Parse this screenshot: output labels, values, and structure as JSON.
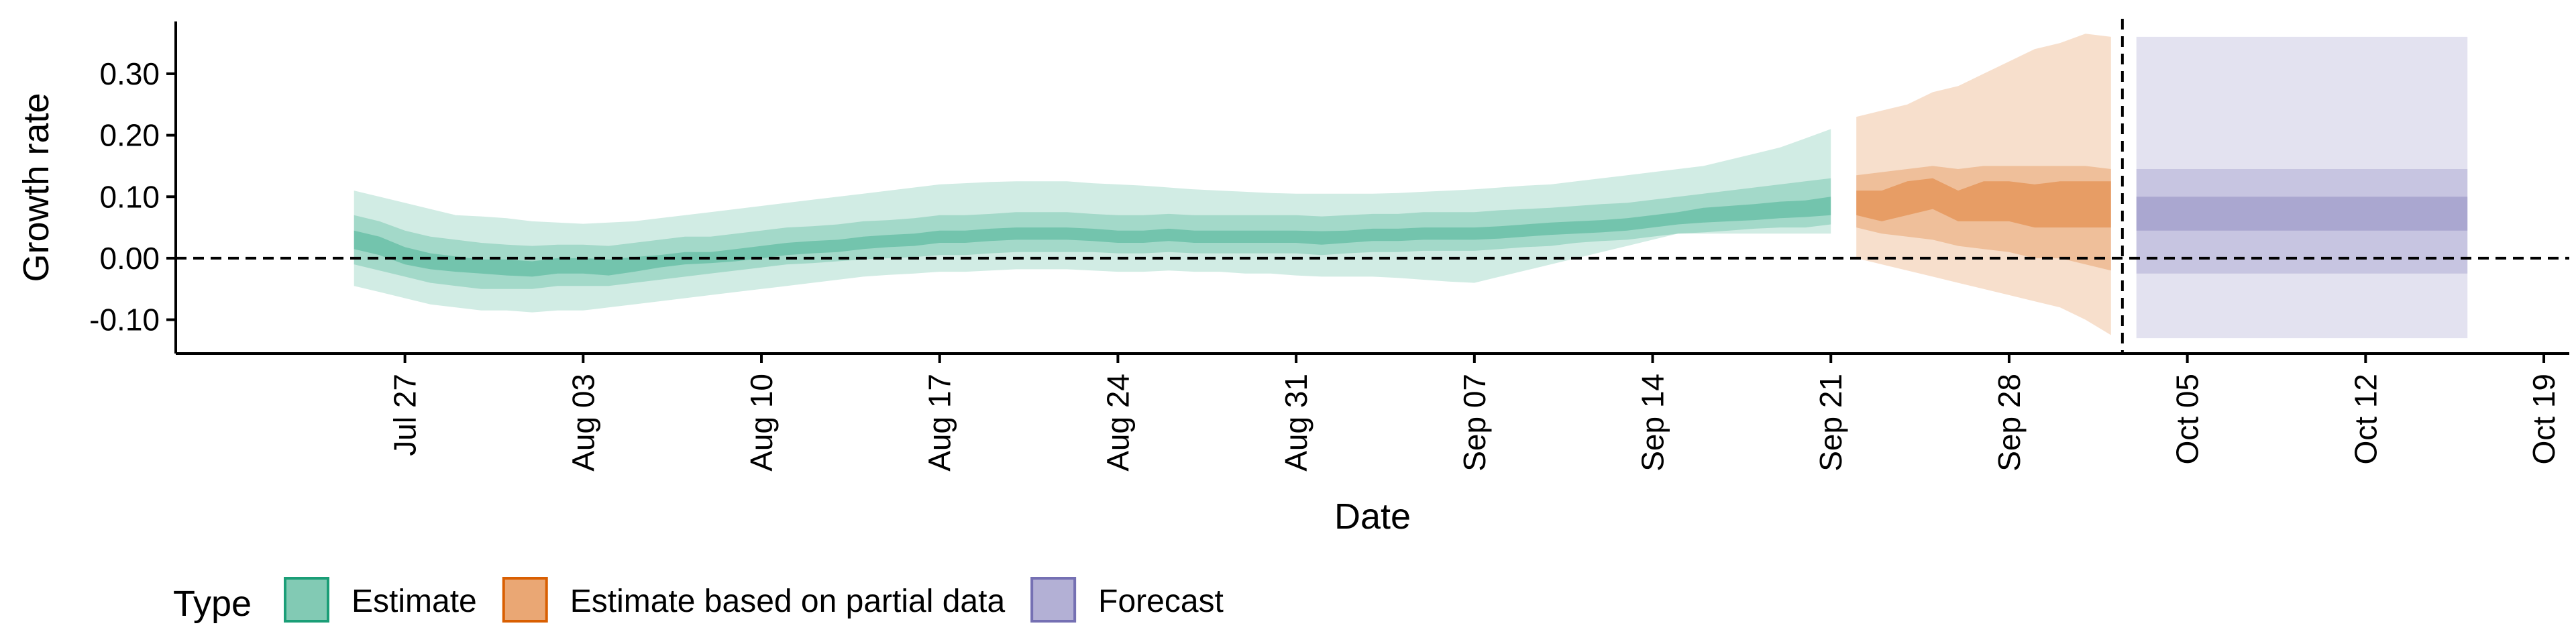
{
  "chart_data": {
    "type": "area",
    "title": "",
    "xlabel": "Date",
    "ylabel": "Growth rate",
    "ylim": [
      -0.155,
      0.385
    ],
    "xlim": [
      "2021-07-18",
      "2021-10-20"
    ],
    "y_ticks": [
      -0.1,
      0.0,
      0.1,
      0.2,
      0.3
    ],
    "y_tick_labels": [
      "-0.10",
      "0.00",
      "0.10",
      "0.20",
      "0.30"
    ],
    "x_ticks": [
      "2021-07-27",
      "2021-08-03",
      "2021-08-10",
      "2021-08-17",
      "2021-08-24",
      "2021-08-31",
      "2021-09-07",
      "2021-09-14",
      "2021-09-21",
      "2021-09-28",
      "2021-10-05",
      "2021-10-12",
      "2021-10-19"
    ],
    "x_tick_labels": [
      "Jul 27",
      "Aug 03",
      "Aug 10",
      "Aug 17",
      "Aug 24",
      "Aug 31",
      "Sep 07",
      "Sep 14",
      "Sep 21",
      "Sep 28",
      "Oct 05",
      "Oct 12",
      "Oct 19"
    ],
    "reference_lines": {
      "horizontal_y": 0.0,
      "vertical_x": "2021-10-02",
      "style": "dashed"
    },
    "grid": false,
    "legend": {
      "position": "bottom-left",
      "title": "Type",
      "items": [
        {
          "label": "Estimate",
          "color": "#1b9e77"
        },
        {
          "label": "Estimate based on partial data",
          "color": "#d95f02"
        },
        {
          "label": "Forecast",
          "color": "#7570b3"
        }
      ]
    },
    "series": [
      {
        "name": "Estimate",
        "color": "#1b9e77",
        "x": [
          "2021-07-25",
          "2021-07-26",
          "2021-07-27",
          "2021-07-28",
          "2021-07-29",
          "2021-07-30",
          "2021-07-31",
          "2021-08-01",
          "2021-08-02",
          "2021-08-03",
          "2021-08-04",
          "2021-08-05",
          "2021-08-06",
          "2021-08-07",
          "2021-08-08",
          "2021-08-09",
          "2021-08-10",
          "2021-08-11",
          "2021-08-12",
          "2021-08-13",
          "2021-08-14",
          "2021-08-15",
          "2021-08-16",
          "2021-08-17",
          "2021-08-18",
          "2021-08-19",
          "2021-08-20",
          "2021-08-21",
          "2021-08-22",
          "2021-08-23",
          "2021-08-24",
          "2021-08-25",
          "2021-08-26",
          "2021-08-27",
          "2021-08-28",
          "2021-08-29",
          "2021-08-30",
          "2021-08-31",
          "2021-09-01",
          "2021-09-02",
          "2021-09-03",
          "2021-09-04",
          "2021-09-05",
          "2021-09-06",
          "2021-09-07",
          "2021-09-08",
          "2021-09-09",
          "2021-09-10",
          "2021-09-11",
          "2021-09-12",
          "2021-09-13",
          "2021-09-14",
          "2021-09-15",
          "2021-09-16",
          "2021-09-17",
          "2021-09-18",
          "2021-09-19",
          "2021-09-20",
          "2021-09-21"
        ],
        "median": [
          0.03,
          0.02,
          0.005,
          -0.005,
          -0.01,
          -0.015,
          -0.015,
          -0.018,
          -0.012,
          -0.012,
          -0.015,
          -0.01,
          -0.005,
          0.0,
          0.0,
          0.005,
          0.01,
          0.015,
          0.018,
          0.02,
          0.025,
          0.028,
          0.03,
          0.035,
          0.035,
          0.038,
          0.04,
          0.04,
          0.04,
          0.038,
          0.035,
          0.035,
          0.038,
          0.035,
          0.035,
          0.035,
          0.035,
          0.035,
          0.033,
          0.035,
          0.038,
          0.038,
          0.04,
          0.04,
          0.04,
          0.042,
          0.045,
          0.048,
          0.05,
          0.052,
          0.055,
          0.06,
          0.065,
          0.07,
          0.072,
          0.075,
          0.078,
          0.08,
          0.085
        ],
        "lower_50": [
          0.015,
          0.005,
          -0.01,
          -0.018,
          -0.022,
          -0.025,
          -0.028,
          -0.03,
          -0.025,
          -0.025,
          -0.028,
          -0.022,
          -0.015,
          -0.01,
          -0.008,
          -0.005,
          0.0,
          0.005,
          0.008,
          0.01,
          0.015,
          0.018,
          0.02,
          0.025,
          0.025,
          0.028,
          0.03,
          0.03,
          0.03,
          0.028,
          0.025,
          0.025,
          0.028,
          0.025,
          0.025,
          0.025,
          0.025,
          0.025,
          0.022,
          0.025,
          0.028,
          0.028,
          0.03,
          0.03,
          0.03,
          0.032,
          0.035,
          0.038,
          0.04,
          0.042,
          0.045,
          0.05,
          0.055,
          0.058,
          0.06,
          0.062,
          0.065,
          0.067,
          0.07
        ],
        "upper_50": [
          0.045,
          0.035,
          0.018,
          0.008,
          0.003,
          -0.002,
          -0.002,
          -0.005,
          0.0,
          0.0,
          -0.002,
          0.002,
          0.005,
          0.01,
          0.01,
          0.015,
          0.02,
          0.025,
          0.028,
          0.03,
          0.035,
          0.038,
          0.04,
          0.045,
          0.045,
          0.048,
          0.05,
          0.05,
          0.05,
          0.048,
          0.045,
          0.045,
          0.048,
          0.045,
          0.045,
          0.045,
          0.045,
          0.045,
          0.044,
          0.045,
          0.048,
          0.048,
          0.05,
          0.05,
          0.05,
          0.052,
          0.055,
          0.058,
          0.06,
          0.062,
          0.065,
          0.07,
          0.075,
          0.082,
          0.085,
          0.088,
          0.092,
          0.094,
          0.1
        ],
        "lower_90": [
          -0.01,
          -0.02,
          -0.03,
          -0.04,
          -0.045,
          -0.05,
          -0.05,
          -0.05,
          -0.045,
          -0.045,
          -0.045,
          -0.04,
          -0.035,
          -0.03,
          -0.025,
          -0.02,
          -0.015,
          -0.01,
          -0.008,
          -0.005,
          -0.002,
          0.0,
          0.002,
          0.005,
          0.005,
          0.008,
          0.01,
          0.01,
          0.01,
          0.01,
          0.008,
          0.008,
          0.01,
          0.008,
          0.008,
          0.008,
          0.008,
          0.008,
          0.005,
          0.008,
          0.01,
          0.01,
          0.012,
          0.012,
          0.012,
          0.015,
          0.018,
          0.02,
          0.025,
          0.028,
          0.03,
          0.035,
          0.04,
          0.042,
          0.045,
          0.048,
          0.05,
          0.05,
          0.055
        ],
        "upper_90": [
          0.07,
          0.06,
          0.045,
          0.035,
          0.03,
          0.025,
          0.022,
          0.02,
          0.022,
          0.022,
          0.02,
          0.025,
          0.03,
          0.035,
          0.035,
          0.04,
          0.045,
          0.05,
          0.052,
          0.055,
          0.06,
          0.062,
          0.065,
          0.07,
          0.07,
          0.072,
          0.075,
          0.075,
          0.075,
          0.072,
          0.07,
          0.07,
          0.072,
          0.07,
          0.07,
          0.07,
          0.07,
          0.07,
          0.068,
          0.07,
          0.072,
          0.072,
          0.075,
          0.075,
          0.075,
          0.078,
          0.08,
          0.082,
          0.085,
          0.088,
          0.09,
          0.095,
          0.1,
          0.105,
          0.11,
          0.115,
          0.12,
          0.125,
          0.13
        ],
        "lower_outer": [
          -0.045,
          -0.055,
          -0.065,
          -0.075,
          -0.08,
          -0.085,
          -0.085,
          -0.088,
          -0.085,
          -0.085,
          -0.08,
          -0.075,
          -0.07,
          -0.065,
          -0.06,
          -0.055,
          -0.05,
          -0.045,
          -0.04,
          -0.035,
          -0.03,
          -0.027,
          -0.025,
          -0.022,
          -0.022,
          -0.02,
          -0.018,
          -0.018,
          -0.018,
          -0.02,
          -0.022,
          -0.022,
          -0.02,
          -0.022,
          -0.022,
          -0.025,
          -0.025,
          -0.028,
          -0.03,
          -0.03,
          -0.03,
          -0.032,
          -0.035,
          -0.038,
          -0.04,
          -0.03,
          -0.02,
          -0.01,
          0.0,
          0.01,
          0.02,
          0.03,
          0.04,
          0.04,
          0.04,
          0.04,
          0.04,
          0.04,
          0.04
        ],
        "upper_outer": [
          0.11,
          0.1,
          0.09,
          0.08,
          0.07,
          0.068,
          0.065,
          0.06,
          0.058,
          0.056,
          0.058,
          0.06,
          0.065,
          0.07,
          0.075,
          0.08,
          0.085,
          0.09,
          0.095,
          0.1,
          0.105,
          0.11,
          0.115,
          0.12,
          0.122,
          0.124,
          0.125,
          0.125,
          0.125,
          0.122,
          0.12,
          0.118,
          0.115,
          0.112,
          0.11,
          0.108,
          0.106,
          0.105,
          0.105,
          0.105,
          0.105,
          0.106,
          0.108,
          0.11,
          0.112,
          0.115,
          0.118,
          0.12,
          0.125,
          0.13,
          0.135,
          0.14,
          0.145,
          0.15,
          0.16,
          0.17,
          0.18,
          0.195,
          0.21
        ]
      },
      {
        "name": "Estimate based on partial data",
        "color": "#d95f02",
        "x": [
          "2021-09-22",
          "2021-09-23",
          "2021-09-24",
          "2021-09-25",
          "2021-09-26",
          "2021-09-27",
          "2021-09-28",
          "2021-09-29",
          "2021-09-30",
          "2021-10-01",
          "2021-10-02"
        ],
        "median": [
          0.09,
          0.08,
          0.1,
          0.11,
          0.09,
          0.1,
          0.1,
          0.09,
          0.1,
          0.09,
          0.09
        ],
        "lower_50": [
          0.07,
          0.06,
          0.07,
          0.08,
          0.06,
          0.06,
          0.06,
          0.05,
          0.05,
          0.05,
          0.05
        ],
        "upper_50": [
          0.11,
          0.11,
          0.125,
          0.13,
          0.11,
          0.125,
          0.125,
          0.12,
          0.125,
          0.125,
          0.125
        ],
        "lower_90": [
          0.05,
          0.04,
          0.035,
          0.03,
          0.02,
          0.015,
          0.01,
          0.0,
          0.0,
          -0.01,
          -0.02
        ],
        "upper_90": [
          0.135,
          0.14,
          0.145,
          0.15,
          0.145,
          0.15,
          0.15,
          0.15,
          0.15,
          0.15,
          0.145
        ],
        "lower_outer": [
          0.0,
          -0.01,
          -0.02,
          -0.03,
          -0.04,
          -0.05,
          -0.06,
          -0.07,
          -0.08,
          -0.1,
          -0.125
        ],
        "upper_outer": [
          0.23,
          0.24,
          0.25,
          0.27,
          0.28,
          0.3,
          0.32,
          0.34,
          0.35,
          0.365,
          0.36
        ]
      },
      {
        "name": "Forecast",
        "color": "#7570b3",
        "x": [
          "2021-10-03",
          "2021-10-16"
        ],
        "median": [
          0.085,
          0.085
        ],
        "lower_50": [
          0.045,
          0.045
        ],
        "upper_50": [
          0.1,
          0.1
        ],
        "lower_90": [
          -0.025,
          -0.025
        ],
        "upper_90": [
          0.145,
          0.145
        ],
        "lower_outer": [
          -0.13,
          -0.13
        ],
        "upper_outer": [
          0.36,
          0.36
        ]
      }
    ]
  }
}
